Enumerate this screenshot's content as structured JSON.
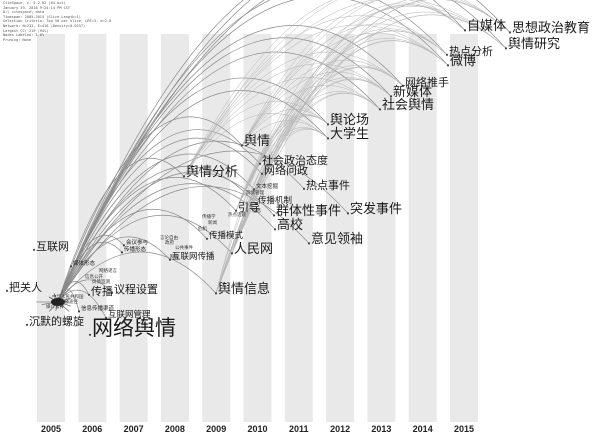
{
  "header_lines": [
    "CiteSpace, v. 5.2.R2 (64-bit)",
    "January 19, 2018 9:24:14 PM CST",
    "D:\\ citespace\\ data",
    "Timespan: 2005-2015 (Slice Length=1)",
    "Selection Criteria: Top 50 per slice, LRF=3, e=2.0",
    "Network: N=231, E=416 (Density=0.0157)",
    "Largest CC: 219 (94%)",
    "Nodes Labeled: 1.0%",
    "Pruning: None"
  ],
  "years": [
    "2005",
    "2006",
    "2007",
    "2008",
    "2009",
    "2010",
    "2011",
    "2012",
    "2013",
    "2014",
    "2015"
  ],
  "terms": [
    {
      "text": "网络舆情",
      "level": "l1"
    },
    {
      "text": "思想政治教育",
      "level": "l3"
    },
    {
      "text": "舆情研究",
      "level": "l3"
    },
    {
      "text": "自媒体",
      "level": "l3"
    },
    {
      "text": "热点分析",
      "level": "l4"
    },
    {
      "text": "微博",
      "level": "l3"
    },
    {
      "text": "网络推手",
      "level": "l4"
    },
    {
      "text": "新媒体",
      "level": "l3"
    },
    {
      "text": "社会舆情",
      "level": "l3"
    },
    {
      "text": "舆论场",
      "level": "l3"
    },
    {
      "text": "大学生",
      "level": "l3"
    },
    {
      "text": "舆情",
      "level": "l3"
    },
    {
      "text": "社会政治态度",
      "level": "l4"
    },
    {
      "text": "网络问政",
      "level": "l4"
    },
    {
      "text": "舆情分析",
      "level": "l3"
    },
    {
      "text": "热点事件",
      "level": "l4"
    },
    {
      "text": "突发事件",
      "level": "l3"
    },
    {
      "text": "群体性事件",
      "level": "l3"
    },
    {
      "text": "高校",
      "level": "l3"
    },
    {
      "text": "意见领袖",
      "level": "l3"
    },
    {
      "text": "人民网",
      "level": "l3"
    },
    {
      "text": "引导",
      "level": "l4"
    },
    {
      "text": "传播机制",
      "level": "l5"
    },
    {
      "text": "传播模式",
      "level": "l5"
    },
    {
      "text": "互联网传播",
      "level": "l5"
    },
    {
      "text": "舆情信息",
      "level": "l3"
    },
    {
      "text": "互联网",
      "level": "l4"
    },
    {
      "text": "把关人",
      "level": "l4"
    },
    {
      "text": "传播",
      "level": "l4"
    },
    {
      "text": "议程设置",
      "level": "l4"
    },
    {
      "text": "沉默的螺旋",
      "level": "l4"
    },
    {
      "text": "互联网管理",
      "level": "l5"
    },
    {
      "text": "会议参与",
      "level": "l6"
    },
    {
      "text": "传播形态",
      "level": "l6"
    },
    {
      "text": "文本挖掘",
      "level": "l6"
    },
    {
      "text": "媒体形态",
      "level": "l6"
    },
    {
      "text": "信息传播渠道",
      "level": "l6"
    }
  ],
  "micro_labels": [
    "中华人民共和国",
    "传播途径",
    "媒介素养",
    "信息公开",
    "舆情监测",
    "网络谣言",
    "政府",
    "公共事件",
    "网民",
    "传播学",
    "新闻",
    "危机",
    "舆情管理",
    "信息",
    "热点话题",
    "言论自由"
  ]
}
